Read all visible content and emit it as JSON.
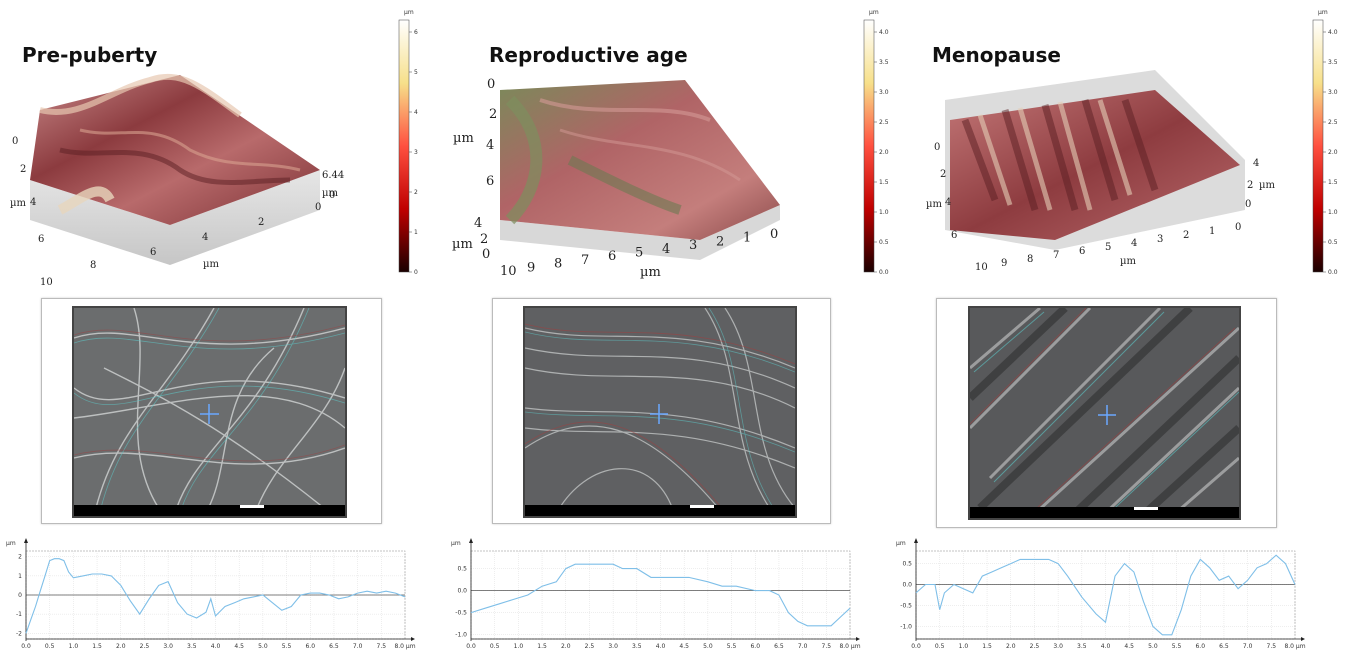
{
  "panels": [
    {
      "title": "Pre-puberty",
      "axis_unit": "µm",
      "x_ticks": [
        "10",
        "8",
        "6",
        "4",
        "2",
        "0"
      ],
      "y_ticks": [
        "0",
        "2",
        "4",
        "6"
      ],
      "z_label": "6.448",
      "colorbar": {
        "unit": "µm",
        "ticks": [
          "0",
          "1",
          "2",
          "3",
          "4",
          "5",
          "6"
        ]
      },
      "profile": {
        "unit": "µm",
        "y_ticks": [
          "2",
          "1",
          "0",
          "-1",
          "-2"
        ],
        "x_ticks": [
          "0.0",
          "0.5",
          "1.0",
          "1.5",
          "2.0",
          "2.5",
          "3.0",
          "3.5",
          "4.0",
          "4.5",
          "5.0",
          "5.5",
          "6.0",
          "6.5",
          "7.0",
          "7.5",
          "8.0 µm"
        ],
        "ylim": [
          -2.3,
          2.3
        ],
        "x": [
          0,
          0.1,
          0.2,
          0.3,
          0.4,
          0.5,
          0.6,
          0.7,
          0.8,
          0.9,
          1.0,
          1.2,
          1.4,
          1.6,
          1.8,
          2.0,
          2.2,
          2.4,
          2.6,
          2.8,
          3.0,
          3.2,
          3.4,
          3.6,
          3.8,
          3.9,
          4.0,
          4.2,
          4.4,
          4.6,
          4.8,
          5.0,
          5.2,
          5.4,
          5.6,
          5.8,
          6.0,
          6.2,
          6.4,
          6.6,
          6.8,
          7.0,
          7.2,
          7.4,
          7.6,
          7.8,
          8.0
        ],
        "y": [
          -2.0,
          -1.3,
          -0.6,
          0.2,
          1.0,
          1.8,
          1.9,
          1.9,
          1.8,
          1.2,
          0.9,
          1.0,
          1.1,
          1.1,
          1.0,
          0.5,
          -0.3,
          -1.0,
          -0.2,
          0.5,
          0.7,
          -0.4,
          -1.0,
          -1.2,
          -0.9,
          -0.2,
          -1.1,
          -0.6,
          -0.4,
          -0.2,
          -0.1,
          0.0,
          -0.4,
          -0.8,
          -0.6,
          0.0,
          0.1,
          0.1,
          0.0,
          -0.2,
          -0.1,
          0.1,
          0.2,
          0.1,
          0.2,
          0.1,
          -0.1
        ]
      }
    },
    {
      "title": "Reproductive age",
      "axis_unit": "µm",
      "x_ticks": [
        "10",
        "9",
        "8",
        "7",
        "6",
        "5",
        "4",
        "3",
        "2",
        "1",
        "0"
      ],
      "y_ticks": [
        "0",
        "2",
        "4",
        "6"
      ],
      "z_ticks": [
        "4",
        "2",
        "0"
      ],
      "colorbar": {
        "unit": "µm",
        "ticks": [
          "0.0",
          "0.5",
          "1.0",
          "1.5",
          "2.0",
          "2.5",
          "3.0",
          "3.5",
          "4.0"
        ]
      },
      "profile": {
        "unit": "µm",
        "y_ticks": [
          "0.5",
          "0.0",
          "-0.5",
          "-1.0"
        ],
        "x_ticks": [
          "0.0",
          "0.5",
          "1.0",
          "1.5",
          "2.0",
          "2.5",
          "3.0",
          "3.5",
          "4.0",
          "4.5",
          "5.0",
          "5.5",
          "6.0",
          "6.5",
          "7.0",
          "7.5",
          "8.0 µm"
        ],
        "ylim": [
          -1.1,
          0.9
        ],
        "x": [
          0,
          0.3,
          0.6,
          0.9,
          1.2,
          1.5,
          1.8,
          2.0,
          2.2,
          2.5,
          2.8,
          3.0,
          3.2,
          3.5,
          3.8,
          4.0,
          4.3,
          4.6,
          5.0,
          5.3,
          5.6,
          6.0,
          6.3,
          6.5,
          6.7,
          6.9,
          7.1,
          7.4,
          7.6,
          7.8,
          8.0
        ],
        "y": [
          -0.5,
          -0.4,
          -0.3,
          -0.2,
          -0.1,
          0.1,
          0.2,
          0.5,
          0.6,
          0.6,
          0.6,
          0.6,
          0.5,
          0.5,
          0.3,
          0.3,
          0.3,
          0.3,
          0.2,
          0.1,
          0.1,
          0.0,
          0.0,
          -0.1,
          -0.5,
          -0.7,
          -0.8,
          -0.8,
          -0.8,
          -0.6,
          -0.4
        ]
      }
    },
    {
      "title": "Menopause",
      "axis_unit": "µm",
      "x_ticks": [
        "10",
        "9",
        "8",
        "7",
        "6",
        "5",
        "4",
        "3",
        "2",
        "1",
        "0"
      ],
      "y_ticks": [
        "0",
        "2",
        "4",
        "6"
      ],
      "z_ticks": [
        "4",
        "2",
        "0"
      ],
      "colorbar": {
        "unit": "µm",
        "ticks": [
          "0.0",
          "0.5",
          "1.0",
          "1.5",
          "2.0",
          "2.5",
          "3.0",
          "3.5",
          "4.0"
        ]
      },
      "profile": {
        "unit": "µm",
        "y_ticks": [
          "0.5",
          "0.0",
          "-0.5",
          "-1.0"
        ],
        "x_ticks": [
          "0.0",
          "0.5",
          "1.0",
          "1.5",
          "2.0",
          "2.5",
          "3.0",
          "3.5",
          "4.0",
          "4.5",
          "5.0",
          "5.5",
          "6.0",
          "6.5",
          "7.0",
          "7.5",
          "8.0 µm"
        ],
        "ylim": [
          -1.3,
          0.8
        ],
        "x": [
          0,
          0.2,
          0.4,
          0.5,
          0.6,
          0.8,
          1.0,
          1.2,
          1.4,
          1.6,
          1.8,
          2.0,
          2.2,
          2.5,
          2.8,
          3.0,
          3.2,
          3.5,
          3.8,
          4.0,
          4.2,
          4.4,
          4.6,
          4.8,
          5.0,
          5.2,
          5.4,
          5.6,
          5.8,
          6.0,
          6.2,
          6.4,
          6.6,
          6.8,
          7.0,
          7.2,
          7.4,
          7.6,
          7.8,
          8.0
        ],
        "y": [
          -0.2,
          0.0,
          0.0,
          -0.6,
          -0.2,
          0.0,
          -0.1,
          -0.2,
          0.2,
          0.3,
          0.4,
          0.5,
          0.6,
          0.6,
          0.6,
          0.5,
          0.2,
          -0.3,
          -0.7,
          -0.9,
          0.2,
          0.5,
          0.3,
          -0.4,
          -1.0,
          -1.2,
          -1.2,
          -0.6,
          0.2,
          0.6,
          0.4,
          0.1,
          0.2,
          -0.1,
          0.1,
          0.4,
          0.5,
          0.7,
          0.5,
          0.0
        ]
      }
    }
  ],
  "colors": {
    "surface_dark": "#8a3a3c",
    "surface_mid": "#b8686a",
    "surface_light": "#e8d2b8",
    "profile_line": "#7fbfe8",
    "sem_bg": "#6e6e6e"
  }
}
